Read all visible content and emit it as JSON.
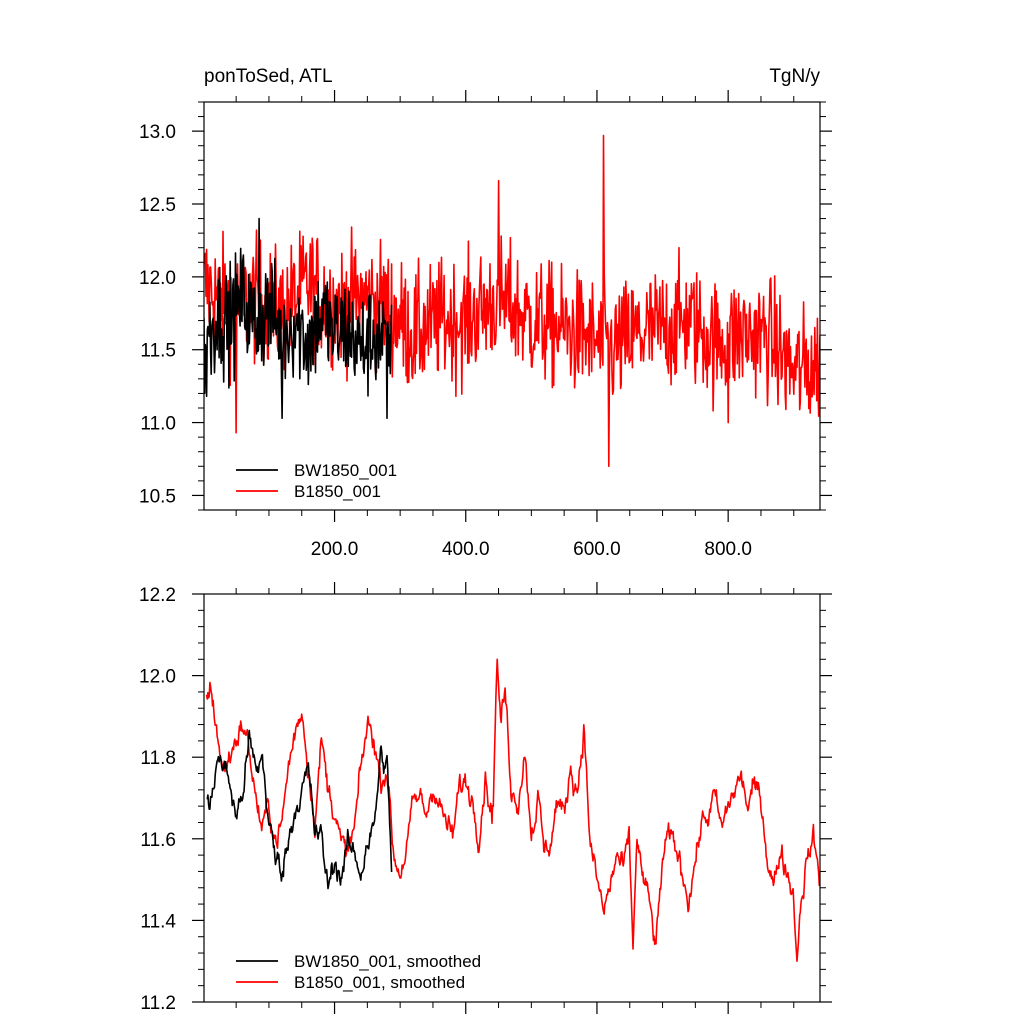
{
  "chart_data": [
    {
      "type": "line",
      "title_left": "ponToSed, ATL",
      "title_right": "TgN/y",
      "xlabel": "",
      "ylabel": "",
      "xlim": [
        1,
        940
      ],
      "ylim": [
        10.4,
        13.2
      ],
      "x_ticks": [
        200,
        400,
        600,
        800
      ],
      "x_tick_labels": [
        "200.0",
        "400.0",
        "600.0",
        "800.0"
      ],
      "y_ticks": [
        10.5,
        11.0,
        11.5,
        12.0,
        12.5,
        13.0
      ],
      "y_tick_labels": [
        "10.5",
        "11.0",
        "11.5",
        "12.0",
        "12.5",
        "13.0"
      ],
      "grid": false,
      "legend_position": "bottom-left",
      "series": [
        {
          "name": "BW1850_001",
          "color": "#000000",
          "x": [
            1,
            20,
            40,
            60,
            80,
            100,
            120,
            140,
            160,
            180,
            200,
            220,
            240,
            260,
            280,
            287
          ],
          "values": [
            11.5,
            11.75,
            11.7,
            11.85,
            11.65,
            11.8,
            11.6,
            11.7,
            11.55,
            11.75,
            11.6,
            11.65,
            11.5,
            11.6,
            11.55,
            11.5
          ],
          "amplitude": 0.45,
          "extremes": [
            {
              "x": 5,
              "y": 11.18
            },
            {
              "x": 85,
              "y": 12.4
            },
            {
              "x": 120,
              "y": 11.03
            },
            {
              "x": 280,
              "y": 11.03
            }
          ]
        },
        {
          "name": "B1850_001",
          "color": "#ff0000",
          "x": [
            1,
            40,
            80,
            120,
            160,
            200,
            240,
            280,
            320,
            360,
            400,
            450,
            500,
            540,
            580,
            620,
            660,
            700,
            740,
            780,
            820,
            860,
            900,
            940
          ],
          "values": [
            11.95,
            11.8,
            11.85,
            11.75,
            11.95,
            11.8,
            11.85,
            11.8,
            11.6,
            11.7,
            11.7,
            11.85,
            11.7,
            11.65,
            11.6,
            11.5,
            11.6,
            11.65,
            11.7,
            11.55,
            11.6,
            11.6,
            11.35,
            11.4
          ],
          "amplitude": 0.5,
          "extremes": [
            {
              "x": 50,
              "y": 10.93
            },
            {
              "x": 450,
              "y": 12.66
            },
            {
              "x": 610,
              "y": 12.97
            },
            {
              "x": 618,
              "y": 10.7
            },
            {
              "x": 800,
              "y": 11.0
            }
          ]
        }
      ]
    },
    {
      "type": "line",
      "xlabel": "",
      "ylabel": "",
      "xlim": [
        1,
        940
      ],
      "ylim": [
        11.2,
        12.2
      ],
      "x_ticks": [
        200,
        400,
        600,
        800
      ],
      "y_ticks": [
        11.2,
        11.4,
        11.6,
        11.8,
        12.0,
        12.2
      ],
      "y_tick_labels": [
        "11.2",
        "11.4",
        "11.6",
        "11.8",
        "12.0",
        "12.2"
      ],
      "grid": false,
      "legend_position": "bottom-left",
      "series": [
        {
          "name": "BW1850_001, smoothed",
          "color": "#000000",
          "x": [
            5,
            10,
            20,
            30,
            40,
            50,
            60,
            70,
            80,
            90,
            100,
            110,
            120,
            130,
            140,
            150,
            160,
            170,
            180,
            190,
            200,
            210,
            220,
            230,
            240,
            250,
            260,
            270,
            280,
            287
          ],
          "values": [
            11.7,
            11.66,
            11.8,
            11.78,
            11.74,
            11.65,
            11.72,
            11.84,
            11.76,
            11.8,
            11.64,
            11.55,
            11.53,
            11.6,
            11.68,
            11.72,
            11.76,
            11.62,
            11.6,
            11.48,
            11.55,
            11.51,
            11.58,
            11.56,
            11.52,
            11.6,
            11.62,
            11.8,
            11.78,
            11.52
          ]
        },
        {
          "name": "B1850_001, smoothed",
          "color": "#ff0000",
          "x": [
            5,
            10,
            20,
            30,
            40,
            50,
            60,
            70,
            80,
            90,
            100,
            110,
            120,
            130,
            140,
            150,
            160,
            170,
            180,
            190,
            200,
            210,
            220,
            230,
            240,
            250,
            260,
            270,
            280,
            290,
            300,
            310,
            320,
            330,
            340,
            350,
            360,
            370,
            380,
            390,
            400,
            410,
            420,
            430,
            440,
            450,
            460,
            470,
            480,
            490,
            500,
            510,
            520,
            530,
            540,
            550,
            560,
            570,
            580,
            590,
            600,
            610,
            620,
            630,
            640,
            650,
            660,
            670,
            680,
            690,
            700,
            710,
            720,
            730,
            740,
            750,
            760,
            770,
            780,
            790,
            800,
            810,
            820,
            830,
            840,
            850,
            860,
            870,
            880,
            890,
            900,
            910,
            920,
            930,
            940
          ],
          "values": [
            11.95,
            11.98,
            11.88,
            11.76,
            11.8,
            11.85,
            11.88,
            11.82,
            11.7,
            11.62,
            11.68,
            11.6,
            11.64,
            11.78,
            11.86,
            11.92,
            11.78,
            11.65,
            11.84,
            11.72,
            11.68,
            11.58,
            11.56,
            11.62,
            11.76,
            11.88,
            11.85,
            11.74,
            11.78,
            11.56,
            11.52,
            11.58,
            11.68,
            11.7,
            11.66,
            11.74,
            11.68,
            11.64,
            11.6,
            11.72,
            11.74,
            11.7,
            11.62,
            11.76,
            11.66,
            11.84,
            11.96,
            11.72,
            11.7,
            11.82,
            11.62,
            11.7,
            11.56,
            11.6,
            11.7,
            11.65,
            11.78,
            11.72,
            11.88,
            11.58,
            11.5,
            11.42,
            11.48,
            11.56,
            11.52,
            11.6,
            11.62,
            11.5,
            11.44,
            11.33,
            11.55,
            11.6,
            11.58,
            11.52,
            11.46,
            11.55,
            11.64,
            11.66,
            11.7,
            11.62,
            11.68,
            11.72,
            11.75,
            11.68,
            11.72,
            11.7,
            11.56,
            11.48,
            11.58,
            11.52,
            11.47,
            11.45,
            11.55,
            11.6,
            11.5
          ],
          "extremes": [
            {
              "x": 448,
              "y": 12.04
            },
            {
              "x": 655,
              "y": 11.33
            },
            {
              "x": 905,
              "y": 11.3
            }
          ]
        }
      ]
    }
  ]
}
